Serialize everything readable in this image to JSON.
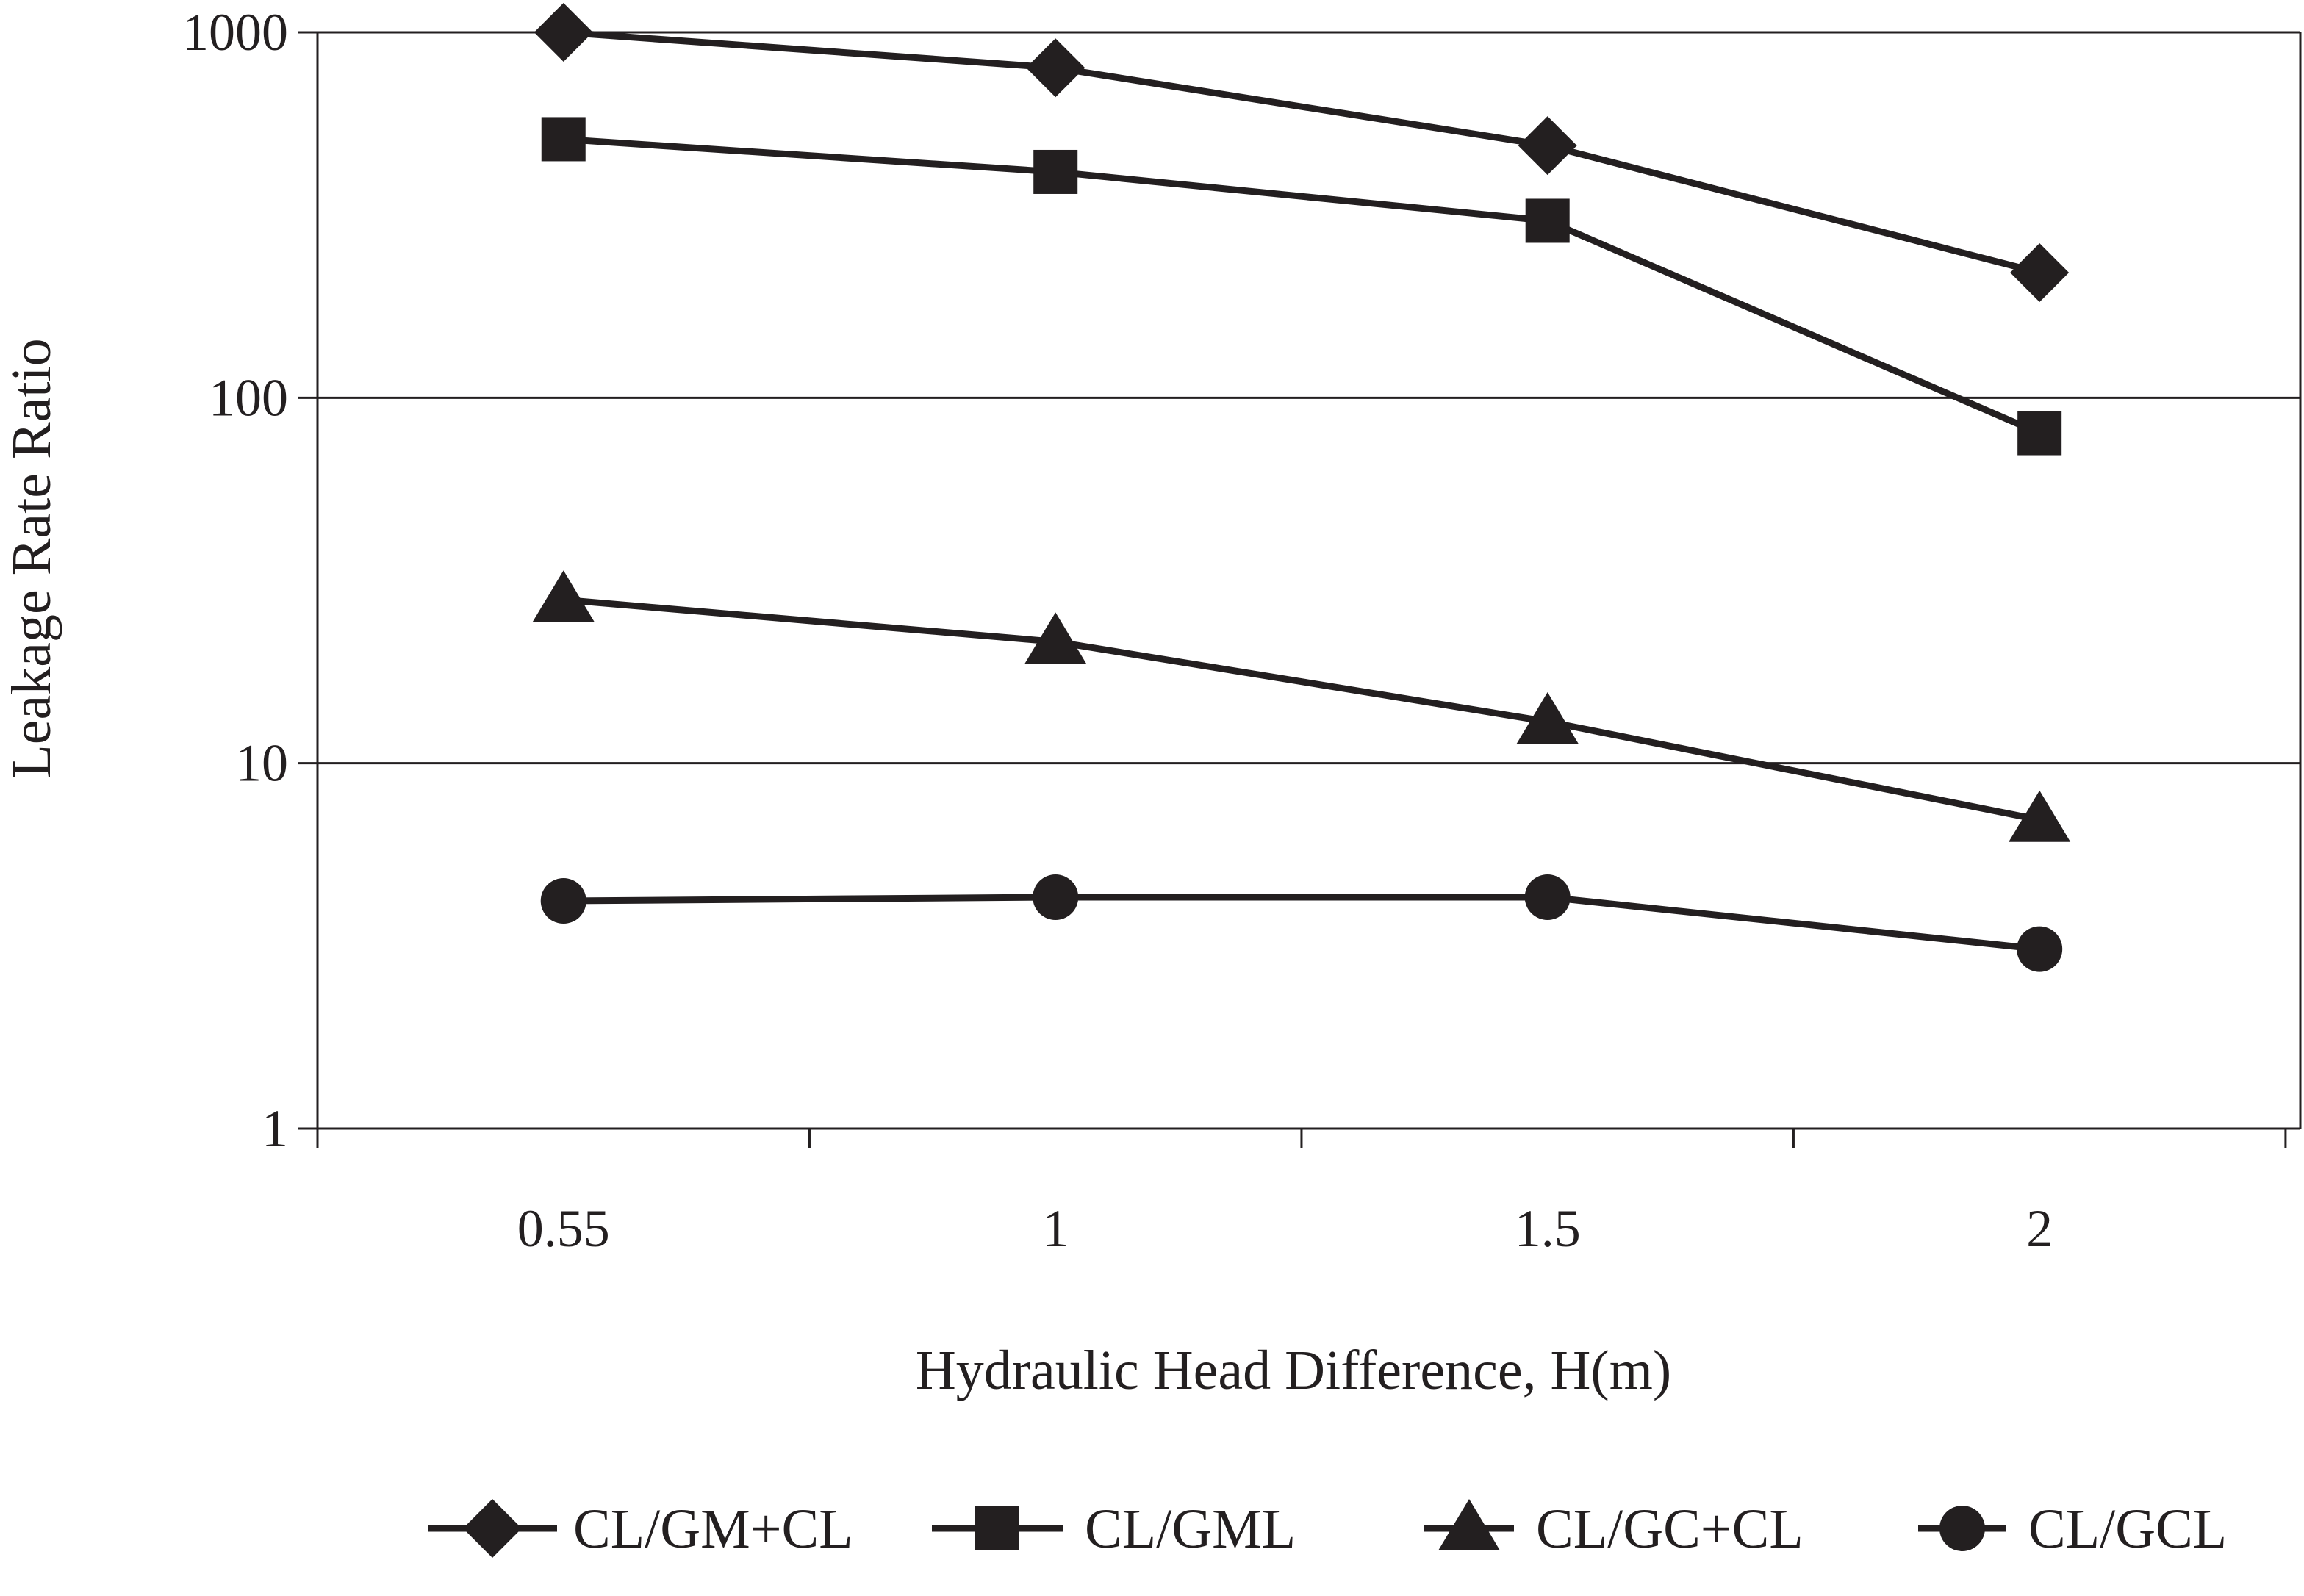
{
  "chart_data": {
    "type": "line",
    "title": "",
    "xlabel": "Hydraulic Head Difference, H(m)",
    "ylabel": "Leakage Rate Ratio",
    "categories": [
      "0.55",
      "1",
      "1.5",
      "2"
    ],
    "y_scale": "log",
    "ylim": [
      1,
      1000
    ],
    "y_ticks": [
      "1",
      "10",
      "100",
      "1000"
    ],
    "grid": "horizontal major gridlines",
    "legend_position": "bottom",
    "line_color": "#231f20",
    "series": [
      {
        "name": "CL/GM+CL",
        "marker": "diamond",
        "values": [
          1000,
          800,
          490,
          220
        ]
      },
      {
        "name": "CL/GML",
        "marker": "square",
        "values": [
          510,
          415,
          305,
          80
        ]
      },
      {
        "name": "CL/GC+CL",
        "marker": "triangle",
        "values": [
          28,
          21.5,
          13,
          7
        ]
      },
      {
        "name": "CL/GCL",
        "marker": "circle",
        "values": [
          4.2,
          4.3,
          4.3,
          3.1
        ]
      }
    ]
  }
}
